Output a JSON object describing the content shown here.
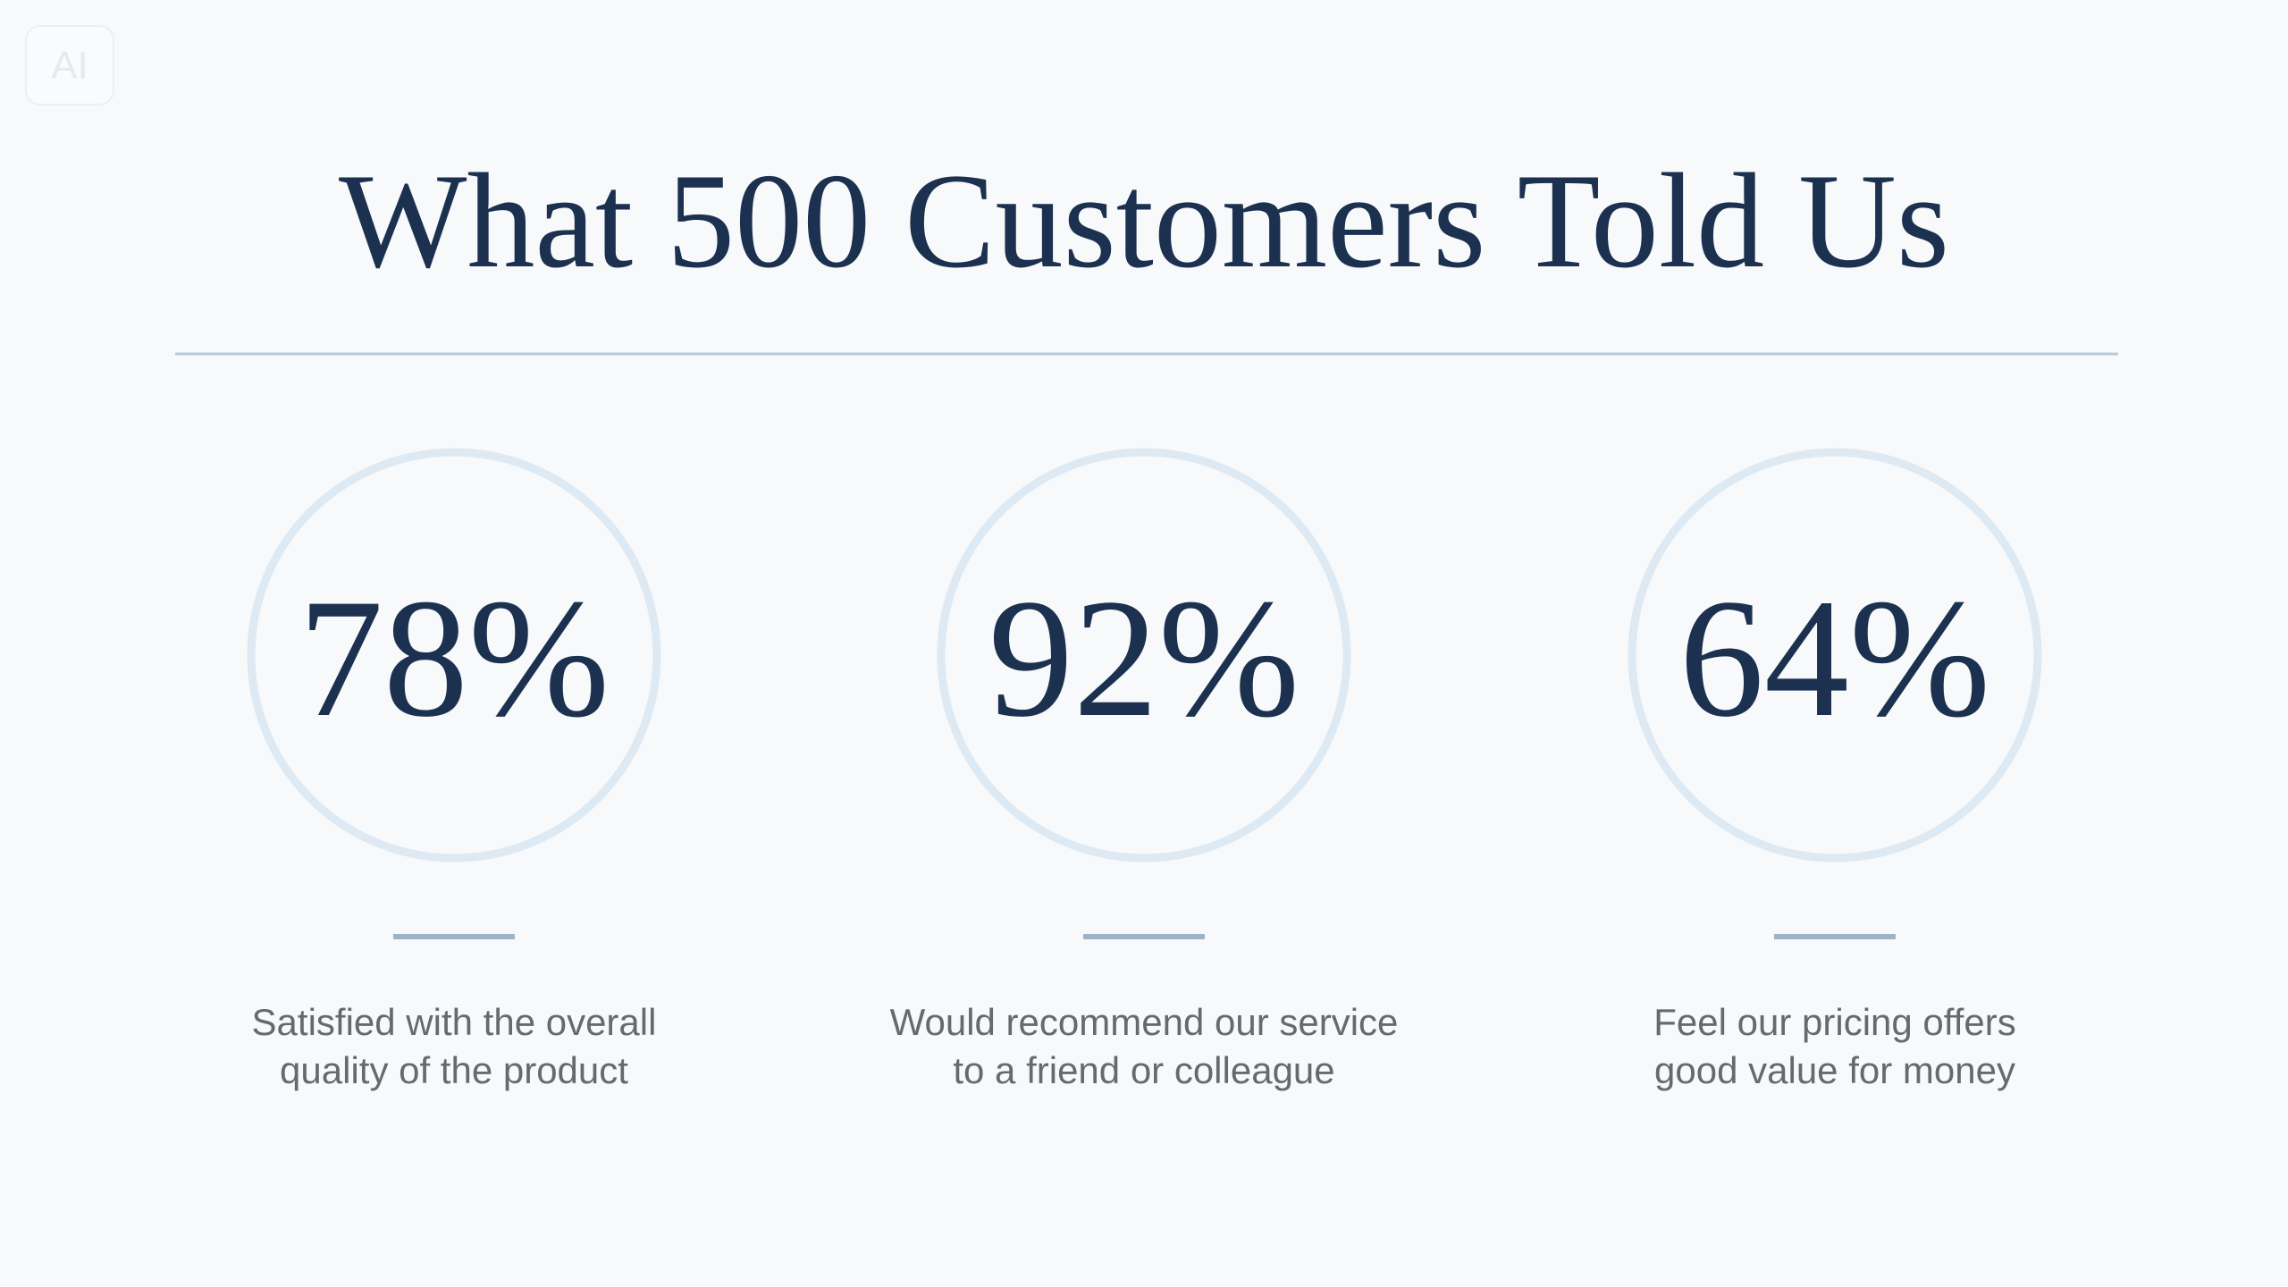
{
  "badge": "AI",
  "title": "What 500 Customers Told Us",
  "stats": [
    {
      "value": "78%",
      "caption": [
        "Satisfied with the overall",
        "quality of the product"
      ]
    },
    {
      "value": "92%",
      "caption": [
        "Would recommend our service",
        "to a friend or colleague"
      ]
    },
    {
      "value": "64%",
      "caption": [
        "Feel our pricing offers",
        "good value for money"
      ]
    }
  ]
}
